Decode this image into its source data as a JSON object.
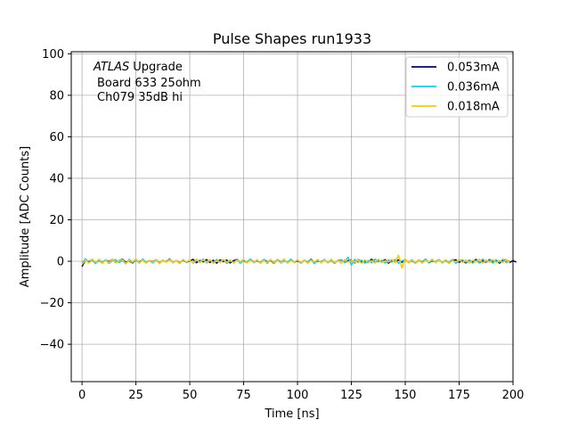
{
  "chart_data": {
    "type": "line",
    "title": "Pulse Shapes run1933",
    "xlabel": "Time [ns]",
    "ylabel": "Amplitude [ADC Counts]",
    "xlim": [
      -5,
      200
    ],
    "ylim": [
      -58,
      101
    ],
    "grid": true,
    "legend_position": "top-right",
    "x_ticks": [
      0,
      25,
      50,
      75,
      100,
      125,
      150,
      175,
      200
    ],
    "x_tick_labels": [
      "0",
      "25",
      "50",
      "75",
      "100",
      "125",
      "150",
      "175",
      "200"
    ],
    "y_ticks": [
      -40,
      -20,
      0,
      20,
      40,
      60,
      80,
      100
    ],
    "y_tick_labels": [
      "−40",
      "−20",
      "0",
      "20",
      "40",
      "60",
      "80",
      "100"
    ],
    "annotation": {
      "atlas": "ATLAS",
      "upgrade": "Upgrade",
      "line2": "Board 633 25ohm",
      "line3": "Ch079 35dB hi"
    },
    "x_sample_step": 1.5625,
    "series": [
      {
        "name": "0.053mA",
        "color": "#00007f",
        "values": [
          -2.5,
          0.5,
          -0.3,
          0.8,
          -0.6,
          0.4,
          -0.9,
          0.6,
          -0.2,
          0.9,
          -0.7,
          0.3,
          1.0,
          -0.5,
          0.2,
          -0.8,
          0.7,
          -0.4,
          0.9,
          -0.6,
          0.3,
          -0.2,
          0.8,
          -0.9,
          0.5,
          -0.3,
          1.1,
          -0.6,
          0.4,
          -0.8,
          0.6,
          -0.5,
          0.2,
          0.9,
          -0.7,
          0.4,
          -0.3,
          0.8,
          -0.6,
          0.5,
          -0.9,
          0.7,
          -0.2,
          0.6,
          -0.8,
          0.3,
          0.9,
          -0.5,
          0.4,
          -0.7,
          1.0,
          -0.4,
          0.2,
          -0.6,
          0.8,
          -0.3,
          0.5,
          -0.9,
          0.7,
          -0.2,
          0.4,
          -0.6,
          0.9,
          -0.5,
          0.3,
          -0.8,
          0.6,
          -0.4,
          1.0,
          -0.7,
          0.2,
          -0.3,
          0.8,
          -0.6,
          0.5,
          -0.9,
          0.4,
          0.7,
          -0.5,
          0.3,
          0.6,
          -0.8,
          0.9,
          -0.4,
          0.2,
          -0.6,
          1.0,
          -0.7,
          0.5,
          -0.3,
          0.8,
          -0.9,
          0.4,
          -0.2,
          0.7,
          -0.5,
          0.9,
          -0.6,
          0.3,
          -0.8,
          0.6,
          -0.4,
          1.0,
          -0.7,
          0.2,
          -0.3,
          0.8,
          -0.6,
          0.5,
          -0.9,
          0.4,
          0.7,
          -0.5,
          0.3,
          -0.8,
          0.6,
          -0.4,
          0.9,
          -0.7,
          0.2,
          -0.5,
          0.8,
          -0.3,
          0.6,
          -0.9,
          0.4,
          0.7,
          -0.6,
          0.3,
          -0.4
        ]
      },
      {
        "name": "0.036mA",
        "color": "#00d4ff",
        "values": [
          -1.0,
          1.2,
          -0.8,
          0.5,
          -1.1,
          0.9,
          -0.4,
          0.7,
          -1.0,
          0.3,
          0.8,
          -0.6,
          0.4,
          -1.2,
          0.9,
          -0.3,
          0.6,
          -0.9,
          1.1,
          -0.5,
          0.2,
          -0.8,
          0.7,
          -1.0,
          0.5,
          -0.4,
          0.9,
          -0.7,
          0.3,
          -1.1,
          0.8,
          -0.5,
          0.6,
          -0.9,
          0.4,
          -0.2,
          1.0,
          -0.8,
          0.5,
          -0.6,
          0.9,
          -0.4,
          0.7,
          -1.0,
          0.3,
          -0.6,
          0.8,
          -0.9,
          0.5,
          -0.3,
          1.1,
          -0.7,
          0.4,
          -0.5,
          0.9,
          -1.0,
          0.6,
          -0.4,
          0.8,
          -0.8,
          0.3,
          -0.6,
          1.0,
          -0.5,
          0.7,
          -0.9,
          0.4,
          -0.3,
          0.8,
          -1.1,
          0.6,
          -0.4,
          0.9,
          -0.7,
          0.5,
          -0.8,
          0.3,
          0.7,
          -0.6,
          2.0,
          -1.8,
          0.9,
          -0.5,
          0.6,
          -0.9,
          0.4,
          -0.7,
          1.0,
          -0.3,
          0.5,
          -0.8,
          0.7,
          -0.4,
          0.9,
          -1.0,
          0.3,
          0.6,
          -0.5,
          0.8,
          -0.9,
          0.4,
          -0.6,
          1.1,
          -0.7,
          0.5,
          -0.3,
          0.8,
          -0.8,
          0.6,
          -0.4,
          0.9,
          -1.0,
          0.3,
          0.7,
          -0.5,
          0.6,
          -0.9,
          0.4,
          -0.7,
          1.0,
          -0.3,
          0.5,
          -0.8,
          0.7,
          -0.4,
          0.9,
          -0.6,
          0.3
        ]
      },
      {
        "name": "0.018mA",
        "color": "#ffc800",
        "values": [
          -1.5,
          0.6,
          -0.9,
          1.0,
          -0.4,
          0.7,
          -1.1,
          0.5,
          -0.6,
          0.9,
          -0.8,
          0.3,
          0.8,
          -1.0,
          0.4,
          -0.5,
          1.1,
          -0.7,
          0.6,
          -0.9,
          0.3,
          -0.4,
          0.9,
          -1.2,
          0.7,
          -0.5,
          0.8,
          -0.6,
          0.4,
          -1.0,
          0.9,
          -0.3,
          0.5,
          -0.8,
          1.0,
          -0.7,
          0.6,
          -0.4,
          0.8,
          -1.1,
          0.3,
          -0.6,
          0.9,
          -0.5,
          0.7,
          -0.9,
          0.4,
          -0.3,
          1.0,
          -0.8,
          0.6,
          -0.5,
          0.8,
          -1.0,
          0.4,
          -0.6,
          0.9,
          -0.7,
          0.5,
          -0.4,
          1.1,
          -0.9,
          0.3,
          -0.5,
          0.8,
          -0.6,
          0.7,
          -1.0,
          0.4,
          -0.3,
          0.9,
          -0.8,
          0.6,
          -0.5,
          1.0,
          -0.7,
          0.3,
          -0.9,
          0.8,
          -0.4,
          0.5,
          -0.6,
          0.9,
          -1.0,
          0.7,
          -0.5,
          0.4,
          -0.8,
          1.0,
          -0.6,
          0.3,
          -0.4,
          0.9,
          -0.7,
          3.0,
          -3.2,
          1.2,
          -0.8,
          0.5,
          -0.6,
          0.8,
          -0.9,
          0.4,
          -0.3,
          1.0,
          -0.7,
          0.6,
          -0.5,
          0.8,
          -1.0,
          0.3,
          -0.4,
          0.9,
          -0.6,
          0.7,
          -0.8,
          0.5,
          -0.3,
          1.0,
          -0.9,
          0.6,
          -0.5,
          0.8,
          -0.7,
          0.4,
          -0.6,
          0.9,
          -0.8
        ]
      }
    ]
  }
}
